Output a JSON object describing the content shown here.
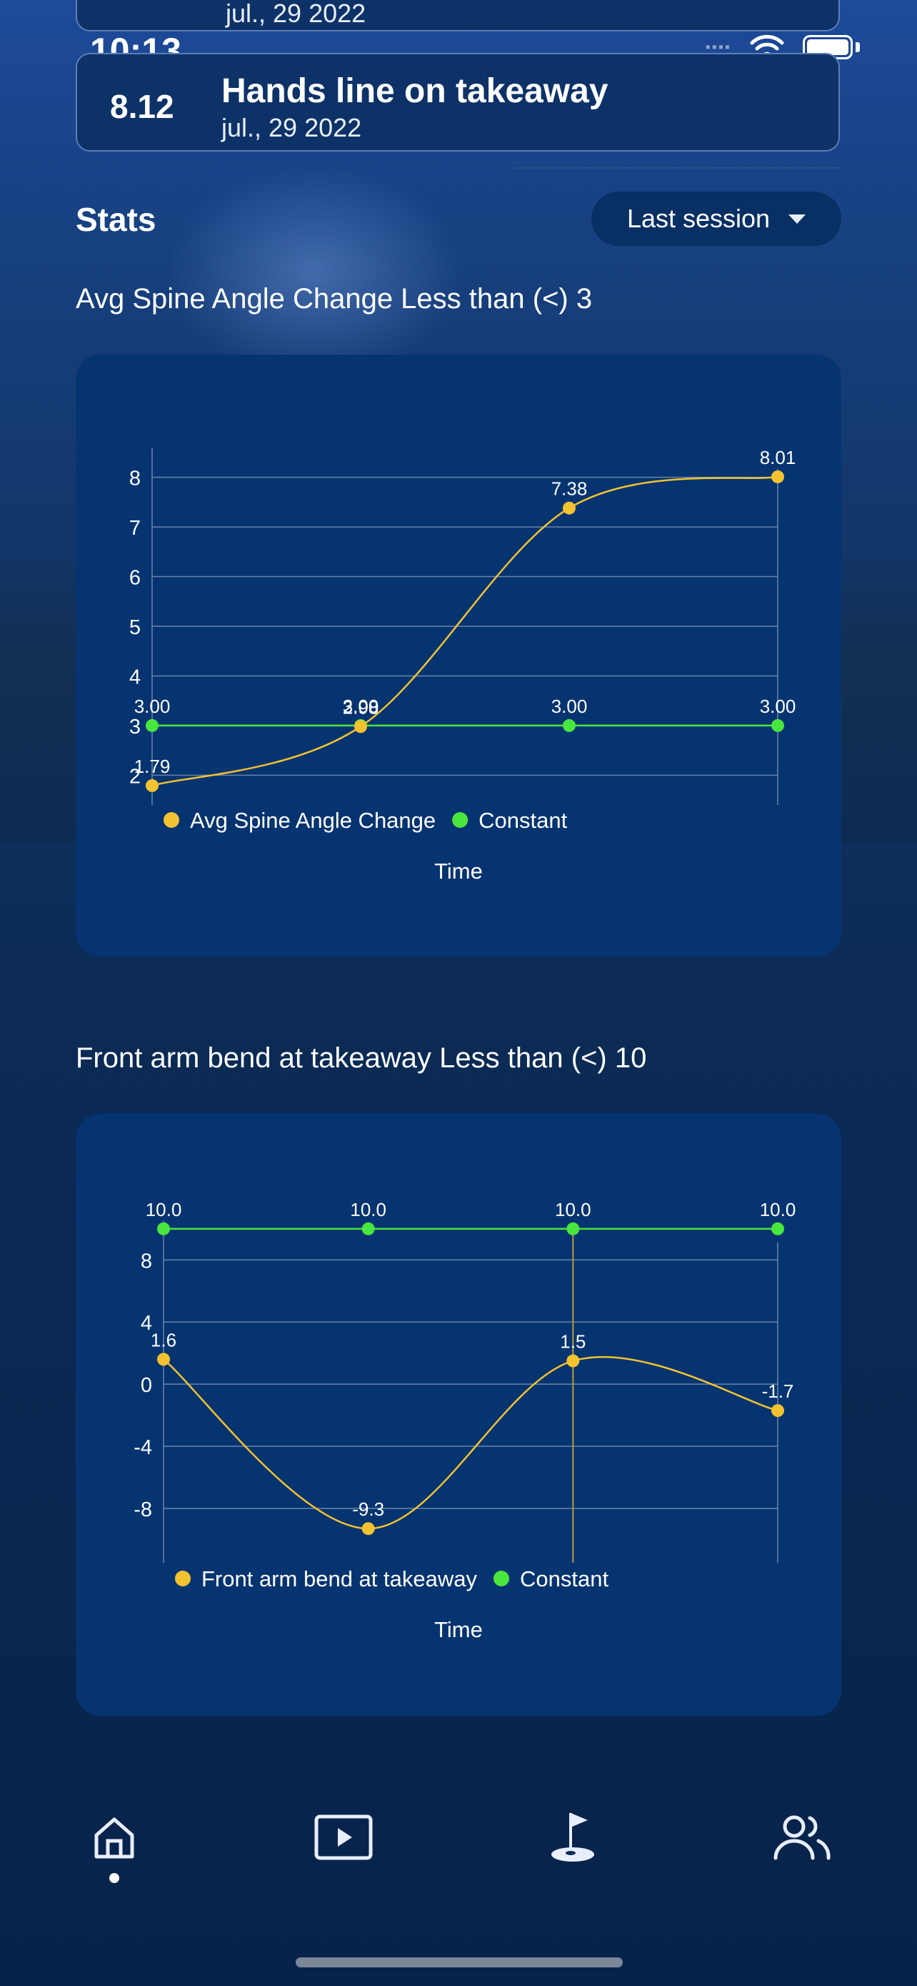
{
  "status_bar": {
    "time": "10:13"
  },
  "previous_card": {
    "date": "jul., 29 2022"
  },
  "session_card": {
    "score": "8.12",
    "title": "Hands line on takeaway",
    "date": "jul., 29 2022"
  },
  "stats": {
    "title": "Stats",
    "session_selector": "Last session"
  },
  "colors": {
    "primary_series": "#f2c230",
    "constant_series": "#49e63d",
    "card_background": "#063470"
  },
  "chart_data": [
    {
      "type": "line",
      "title": "Avg Spine Angle Change Less than (<) 3",
      "xlabel": "Time",
      "ylim": [
        1.4,
        8.6
      ],
      "yticks": [
        2,
        3,
        4,
        5,
        6,
        7,
        8
      ],
      "grid": true,
      "legend_placement": "bottom",
      "x": [
        1,
        2,
        3,
        4
      ],
      "series": [
        {
          "name": "Avg Spine Angle Change",
          "color": "#f2c230",
          "values": [
            1.79,
            2.98,
            7.38,
            8.01
          ],
          "labels": [
            "1.79",
            "2.98",
            "7.38",
            "8.01"
          ]
        },
        {
          "name": "Constant",
          "color": "#49e63d",
          "values": [
            3.0,
            3.0,
            3.0,
            3.0
          ],
          "labels": [
            "3.00",
            "3.00",
            "3.00",
            "3.00"
          ]
        }
      ]
    },
    {
      "type": "line",
      "title": "Front arm bend at takeaway Less than (<) 10",
      "xlabel": "Time",
      "ylim": [
        -11.5,
        10.5
      ],
      "yticks": [
        8,
        4,
        0,
        -4,
        -8
      ],
      "grid": true,
      "legend_placement": "bottom",
      "x": [
        1,
        2,
        3,
        4
      ],
      "series": [
        {
          "name": "Front arm bend at takeaway",
          "color": "#f2c230",
          "values": [
            1.6,
            -9.3,
            1.5,
            -1.7
          ],
          "labels": [
            "1.6",
            "-9.3",
            "1.5",
            "-1.7"
          ]
        },
        {
          "name": "Constant",
          "color": "#49e63d",
          "values": [
            10.0,
            10.0,
            10.0,
            10.0
          ],
          "labels": [
            "10.0",
            "10.0",
            "10.0",
            "10.0"
          ]
        }
      ]
    }
  ],
  "nav": {
    "active": "home",
    "items": [
      "home-icon",
      "video-icon",
      "golf-flag-icon",
      "users-icon"
    ]
  }
}
